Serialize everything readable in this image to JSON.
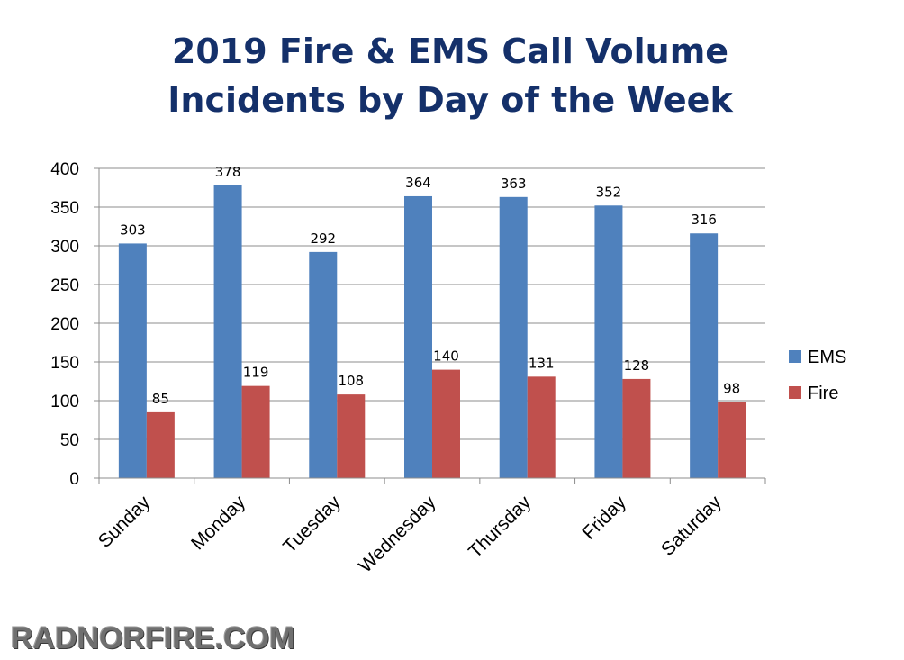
{
  "chart_data": {
    "type": "bar",
    "title_lines": [
      "2019 Fire & EMS Call Volume",
      "Incidents by Day of the Week"
    ],
    "categories": [
      "Sunday",
      "Monday",
      "Tuesday",
      "Wednesday",
      "Thursday",
      "Friday",
      "Saturday"
    ],
    "series": [
      {
        "name": "EMS",
        "color": "#4f81bd",
        "values": [
          303,
          378,
          292,
          364,
          363,
          352,
          316
        ]
      },
      {
        "name": "Fire",
        "color": "#c0504d",
        "values": [
          85,
          119,
          108,
          140,
          131,
          128,
          98
        ]
      }
    ],
    "ylim": [
      0,
      400
    ],
    "yticks": [
      0,
      50,
      100,
      150,
      200,
      250,
      300,
      350,
      400
    ],
    "grid": true,
    "legend_position": "right",
    "data_labels": true
  },
  "watermark": "RADNORFIRE.COM"
}
